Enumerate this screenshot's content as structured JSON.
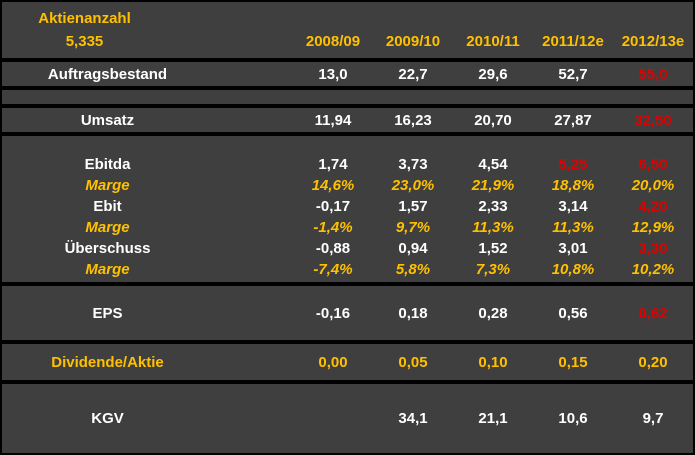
{
  "colors": {
    "background": "#3f3f3f",
    "divider": "#000000",
    "text_default": "#ffffff",
    "accent_orange": "#ffc000",
    "estimate_red": "#e00000"
  },
  "header": {
    "share_count_label": "Aktienanzahl",
    "share_count_value": "5,335",
    "columns": [
      "2008/09",
      "2009/10",
      "2010/11",
      "2011/12e",
      "2012/13e"
    ]
  },
  "rows": {
    "auftragsbestand": {
      "label": "Auftragsbestand",
      "values": [
        "13,0",
        "22,7",
        "29,6",
        "52,7",
        "55,0"
      ]
    },
    "umsatz": {
      "label": "Umsatz",
      "values": [
        "11,94",
        "16,23",
        "20,70",
        "27,87",
        "32,50"
      ]
    },
    "ebitda": {
      "label": "Ebitda",
      "values": [
        "1,74",
        "3,73",
        "4,54",
        "5,25",
        "6,50"
      ]
    },
    "ebitda_marge": {
      "label": "Marge",
      "values": [
        "14,6%",
        "23,0%",
        "21,9%",
        "18,8%",
        "20,0%"
      ]
    },
    "ebit": {
      "label": "Ebit",
      "values": [
        "-0,17",
        "1,57",
        "2,33",
        "3,14",
        "4,20"
      ]
    },
    "ebit_marge": {
      "label": "Marge",
      "values": [
        "-1,4%",
        "9,7%",
        "11,3%",
        "11,3%",
        "12,9%"
      ]
    },
    "ueberschuss": {
      "label": "Überschuss",
      "values": [
        "-0,88",
        "0,94",
        "1,52",
        "3,01",
        "3,30"
      ]
    },
    "ueberschuss_marge": {
      "label": "Marge",
      "values": [
        "-7,4%",
        "5,8%",
        "7,3%",
        "10,8%",
        "10,2%"
      ]
    },
    "eps": {
      "label": "EPS",
      "values": [
        "-0,16",
        "0,18",
        "0,28",
        "0,56",
        "0,62"
      ]
    },
    "dividende": {
      "label": "Dividende/Aktie",
      "values": [
        "0,00",
        "0,05",
        "0,10",
        "0,15",
        "0,20"
      ]
    },
    "kgv": {
      "label": "KGV",
      "values": [
        "",
        "34,1",
        "21,1",
        "10,6",
        "9,7"
      ]
    }
  }
}
